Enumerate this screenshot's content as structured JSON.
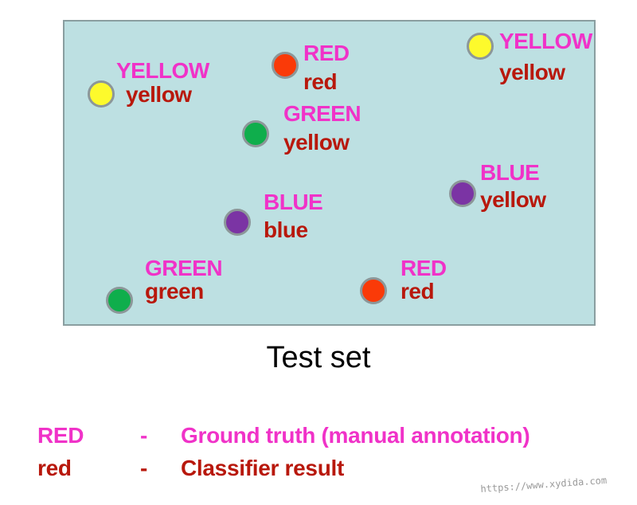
{
  "colors": {
    "panel_bg": "#bde0e2",
    "truth_text": "#f032c8",
    "pred_text": "#b8180c",
    "dot_border": "#8c9799",
    "yellow": "#fdfa2c",
    "red": "#fa3a08",
    "green": "#0fae4c",
    "blue": "#7b34a4"
  },
  "points": [
    {
      "truth": "YELLOW",
      "pred": "yellow",
      "color": "yellow"
    },
    {
      "truth": "RED",
      "pred": "red",
      "color": "red"
    },
    {
      "truth": "YELLOW",
      "pred": "yellow",
      "color": "yellow"
    },
    {
      "truth": "GREEN",
      "pred": "yellow",
      "color": "green"
    },
    {
      "truth": "BLUE",
      "pred": "yellow",
      "color": "blue"
    },
    {
      "truth": "BLUE",
      "pred": "blue",
      "color": "blue"
    },
    {
      "truth": "GREEN",
      "pred": "green",
      "color": "green"
    },
    {
      "truth": "RED",
      "pred": "red",
      "color": "red"
    }
  ],
  "caption": "Test set",
  "legend": [
    {
      "key": "RED",
      "dash": "-",
      "desc": "Ground truth (manual annotation)"
    },
    {
      "key": "red",
      "dash": "-",
      "desc": "Classifier result"
    }
  ],
  "watermark": "https://www.xydida.com"
}
